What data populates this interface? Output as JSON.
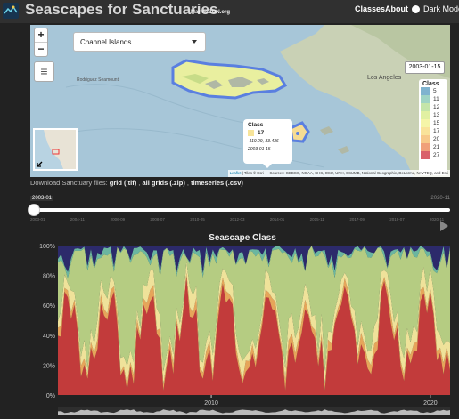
{
  "navbar": {
    "title": "Seascapes for Sanctuaries",
    "subtitle": "MarineBON.org",
    "links": [
      "Classes",
      "About"
    ],
    "dark_mode_label": "Dark Mode"
  },
  "map": {
    "zoom_in": "+",
    "zoom_out": "−",
    "sanctuary_select": "Channel Islands",
    "date": "2003-01-15",
    "place_labels": [
      "Los Angeles",
      "Rodriguez Seamount"
    ],
    "legend": {
      "title": "Class",
      "items": [
        {
          "value": "5",
          "color": "#7fb3cf"
        },
        {
          "value": "11",
          "color": "#9fd4c4"
        },
        {
          "value": "12",
          "color": "#c4e5a9"
        },
        {
          "value": "13",
          "color": "#e1f0a2"
        },
        {
          "value": "15",
          "color": "#f5f5a8"
        },
        {
          "value": "17",
          "color": "#f9e39a"
        },
        {
          "value": "20",
          "color": "#f7c98a"
        },
        {
          "value": "21",
          "color": "#f0a07a"
        },
        {
          "value": "27",
          "color": "#d9626a"
        }
      ]
    },
    "popup": {
      "title": "Class",
      "value": "17",
      "coords": "-119.09, 33.436",
      "date": "2003-01-15"
    },
    "attribution_leaflet": "Leaflet",
    "attribution": "| Tiles © Esri — Sources: GEBCO, NOAA, CHS, OSU, UNH, CSUMB, National Geographic, DeLorme, NAVTEQ, and Esri"
  },
  "download": {
    "prefix": "Download Sanctuary files: ",
    "grid": "grid (.tif)",
    "sep1": " , ",
    "all_grids": "all grids (.zip)",
    "sep2": " , ",
    "timeseries": "timeseries (.csv)"
  },
  "slider": {
    "value": "2003-01",
    "max": "2020-11",
    "ticks": [
      "2003-01",
      "2004-11",
      "2006-09",
      "2008-07",
      "2010-05",
      "2012-03",
      "2014-01",
      "2015-11",
      "2017-09",
      "2019-07",
      "2020-11"
    ]
  },
  "chart_data": {
    "type": "area",
    "title": "Seascape Class",
    "y_ticks": [
      "0%",
      "20%",
      "40%",
      "60%",
      "80%",
      "100%"
    ],
    "x_ticks": [
      "2010",
      "2020"
    ],
    "ylim": [
      0,
      100
    ],
    "xlim": [
      2003.0,
      2020.9
    ],
    "colors": {
      "red": "#c23b3b",
      "orange": "#e6a55a",
      "yellow": "#efe29a",
      "green": "#b5cc82",
      "teal": "#6ab6a0",
      "navy": "#2c2a6b"
    }
  }
}
